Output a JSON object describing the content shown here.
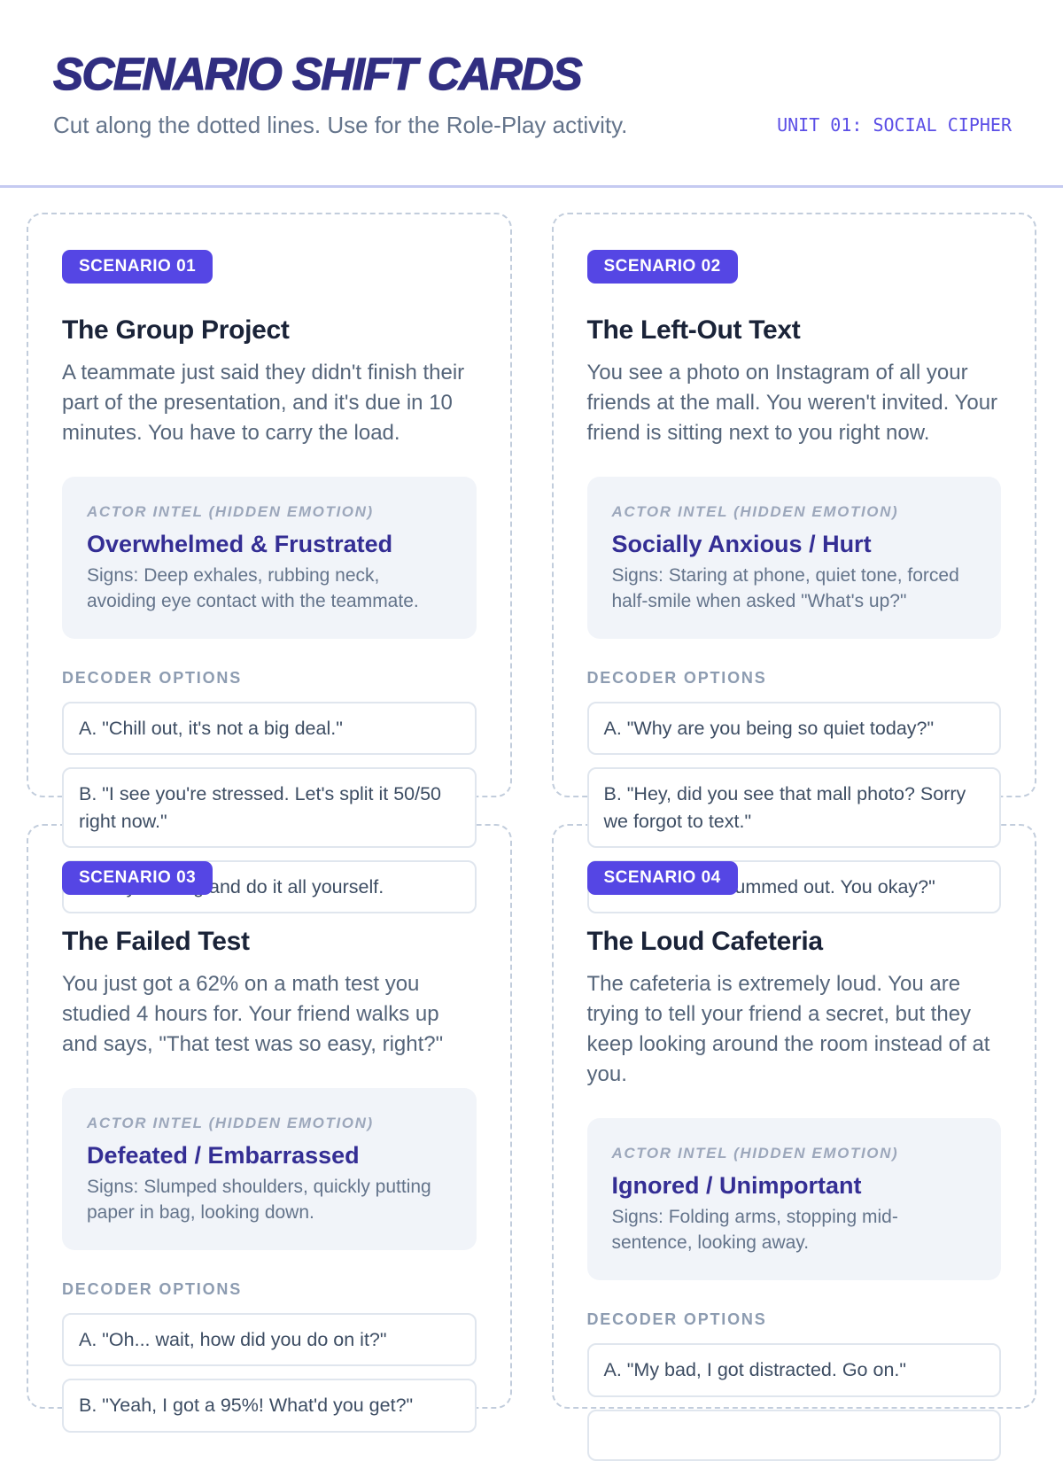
{
  "header": {
    "title": "SCENARIO SHIFT CARDS",
    "subtitle": "Cut along the dotted lines. Use for the Role-Play activity.",
    "unit_label": "UNIT 01: SOCIAL CIPHER"
  },
  "labels": {
    "intel": "ACTOR INTEL (HIDDEN EMOTION)",
    "decoder": "DECODER OPTIONS"
  },
  "colors": {
    "accent_indigo": "#5546e4",
    "title_indigo": "#312e81",
    "emotion_indigo": "#342e94",
    "unit_label_violet": "#5b4ee6",
    "divider_periwinkle": "#c5caf1",
    "dashed_border": "#c2cddc",
    "intel_box_bg": "#f1f4f9"
  },
  "cards": [
    {
      "badge": "SCENARIO 01",
      "title": "The Group Project",
      "description": "A teammate just said they didn't finish their part of the presentation, and it's due in 10 minutes. You have to carry the load.",
      "emotion": "Overwhelmed & Frustrated",
      "signs": "Signs: Deep exhales, rubbing neck, avoiding eye contact with the teammate.",
      "options": [
        "A. \"Chill out, it's not a big deal.\"",
        "B. \"I see you're stressed. Let's split it 50/50 right now.\"",
        "C. Say nothing and do it all yourself."
      ]
    },
    {
      "badge": "SCENARIO 02",
      "title": "The Left-Out Text",
      "description": "You see a photo on Instagram of all your friends at the mall. You weren't invited. Your friend is sitting next to you right now.",
      "emotion": "Socially Anxious / Hurt",
      "signs": "Signs: Staring at phone, quiet tone, forced half-smile when asked \"What's up?\"",
      "options": [
        "A. \"Why are you being so quiet today?\"",
        "B. \"Hey, did you see that mall photo? Sorry we forgot to text.\"",
        "C. \"You seem bummed out. You okay?\""
      ]
    },
    {
      "badge": "SCENARIO 03",
      "title": "The Failed Test",
      "description": "You just got a 62% on a math test you studied 4 hours for. Your friend walks up and says, \"That test was so easy, right?\"",
      "emotion": "Defeated / Embarrassed",
      "signs": "Signs: Slumped shoulders, quickly putting paper in bag, looking down.",
      "options": [
        "A. \"Oh... wait, how did you do on it?\"",
        "B. \"Yeah, I got a 95%! What'd you get?\""
      ]
    },
    {
      "badge": "SCENARIO 04",
      "title": "The Loud Cafeteria",
      "description": "The cafeteria is extremely loud. You are trying to tell your friend a secret, but they keep looking around the room instead of at you.",
      "emotion": "Ignored / Unimportant",
      "signs": "Signs: Folding arms, stopping mid-sentence, looking away.",
      "options": [
        "A. \"My bad, I got distracted. Go on.\"",
        ""
      ]
    }
  ]
}
